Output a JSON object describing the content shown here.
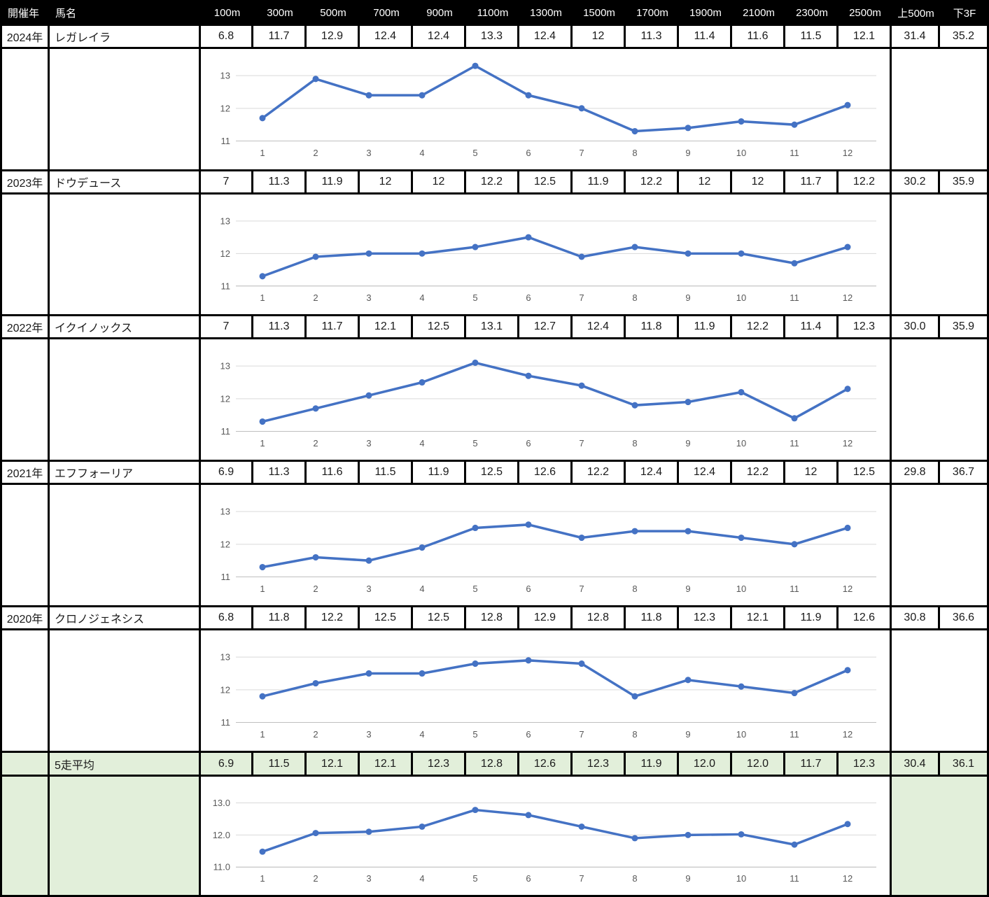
{
  "colors": {
    "accent_line": "#4472C4",
    "grid": "#D9D9D9",
    "axis": "#BFBFBF",
    "axis_text": "#595959",
    "header_bg": "#000000",
    "header_text": "#FFFFFF",
    "highlight_bg": "#E2EFDA",
    "border": "#000000"
  },
  "table": {
    "headers": [
      "開催年",
      "馬名",
      "100m",
      "300m",
      "500m",
      "700m",
      "900m",
      "1100m",
      "1300m",
      "1500m",
      "1700m",
      "1900m",
      "2100m",
      "2300m",
      "2500m",
      "上500m",
      "下3F"
    ],
    "rows": [
      {
        "year": "2024年",
        "horse": "レガレイラ",
        "highlight": false,
        "values": [
          "6.8",
          "11.7",
          "12.9",
          "12.4",
          "12.4",
          "13.3",
          "12.4",
          "12",
          "11.3",
          "11.4",
          "11.6",
          "11.5",
          "12.1",
          "31.4",
          "35.2"
        ]
      },
      {
        "year": "2023年",
        "horse": "ドウデュース",
        "highlight": false,
        "values": [
          "7",
          "11.3",
          "11.9",
          "12",
          "12",
          "12.2",
          "12.5",
          "11.9",
          "12.2",
          "12",
          "12",
          "11.7",
          "12.2",
          "30.2",
          "35.9"
        ]
      },
      {
        "year": "2022年",
        "horse": "イクイノックス",
        "highlight": false,
        "values": [
          "7",
          "11.3",
          "11.7",
          "12.1",
          "12.5",
          "13.1",
          "12.7",
          "12.4",
          "11.8",
          "11.9",
          "12.2",
          "11.4",
          "12.3",
          "30.0",
          "35.9"
        ]
      },
      {
        "year": "2021年",
        "horse": "エフフォーリア",
        "highlight": false,
        "values": [
          "6.9",
          "11.3",
          "11.6",
          "11.5",
          "11.9",
          "12.5",
          "12.6",
          "12.2",
          "12.4",
          "12.4",
          "12.2",
          "12",
          "12.5",
          "29.8",
          "36.7"
        ]
      },
      {
        "year": "2020年",
        "horse": "クロノジェネシス",
        "highlight": false,
        "values": [
          "6.8",
          "11.8",
          "12.2",
          "12.5",
          "12.5",
          "12.8",
          "12.9",
          "12.8",
          "11.8",
          "12.3",
          "12.1",
          "11.9",
          "12.6",
          "30.8",
          "36.6"
        ]
      },
      {
        "year": "",
        "horse": "5走平均",
        "highlight": true,
        "values": [
          "6.9",
          "11.5",
          "12.1",
          "12.1",
          "12.3",
          "12.8",
          "12.6",
          "12.3",
          "11.9",
          "12.0",
          "12.0",
          "11.7",
          "12.3",
          "30.4",
          "36.1"
        ]
      }
    ]
  },
  "chart_data": [
    {
      "type": "line",
      "name": "2024年 レガレイラ ラップ",
      "categories": [
        "1",
        "2",
        "3",
        "4",
        "5",
        "6",
        "7",
        "8",
        "9",
        "10",
        "11",
        "12"
      ],
      "values": [
        11.7,
        12.9,
        12.4,
        12.4,
        13.3,
        12.4,
        12,
        11.3,
        11.4,
        11.6,
        11.5,
        12.1
      ],
      "ylim": [
        11,
        13.6
      ],
      "yticks": [
        11,
        12,
        13
      ],
      "ytick_labels": [
        "11",
        "12",
        "13"
      ],
      "grid": true,
      "legend": "none"
    },
    {
      "type": "line",
      "name": "2023年 ドウデュース ラップ",
      "categories": [
        "1",
        "2",
        "3",
        "4",
        "5",
        "6",
        "7",
        "8",
        "9",
        "10",
        "11",
        "12"
      ],
      "values": [
        11.3,
        11.9,
        12,
        12,
        12.2,
        12.5,
        11.9,
        12.2,
        12,
        12,
        11.7,
        12.2
      ],
      "ylim": [
        11,
        13.6
      ],
      "yticks": [
        11,
        12,
        13
      ],
      "ytick_labels": [
        "11",
        "12",
        "13"
      ],
      "grid": true,
      "legend": "none"
    },
    {
      "type": "line",
      "name": "2022年 イクイノックス ラップ",
      "categories": [
        "1",
        "2",
        "3",
        "4",
        "5",
        "6",
        "7",
        "8",
        "9",
        "10",
        "11",
        "12"
      ],
      "values": [
        11.3,
        11.7,
        12.1,
        12.5,
        13.1,
        12.7,
        12.4,
        11.8,
        11.9,
        12.2,
        11.4,
        12.3
      ],
      "ylim": [
        11,
        13.6
      ],
      "yticks": [
        11,
        12,
        13
      ],
      "ytick_labels": [
        "11",
        "12",
        "13"
      ],
      "grid": true,
      "legend": "none"
    },
    {
      "type": "line",
      "name": "2021年 エフフォーリア ラップ",
      "categories": [
        "1",
        "2",
        "3",
        "4",
        "5",
        "6",
        "7",
        "8",
        "9",
        "10",
        "11",
        "12"
      ],
      "values": [
        11.3,
        11.6,
        11.5,
        11.9,
        12.5,
        12.6,
        12.2,
        12.4,
        12.4,
        12.2,
        12,
        12.5
      ],
      "ylim": [
        11,
        13.6
      ],
      "yticks": [
        11,
        12,
        13
      ],
      "ytick_labels": [
        "11",
        "12",
        "13"
      ],
      "grid": true,
      "legend": "none"
    },
    {
      "type": "line",
      "name": "2020年 クロノジェネシス ラップ",
      "categories": [
        "1",
        "2",
        "3",
        "4",
        "5",
        "6",
        "7",
        "8",
        "9",
        "10",
        "11",
        "12"
      ],
      "values": [
        11.8,
        12.2,
        12.5,
        12.5,
        12.8,
        12.9,
        12.8,
        11.8,
        12.3,
        12.1,
        11.9,
        12.6
      ],
      "ylim": [
        11,
        13.6
      ],
      "yticks": [
        11,
        12,
        13
      ],
      "ytick_labels": [
        "11",
        "12",
        "13"
      ],
      "grid": true,
      "legend": "none"
    },
    {
      "type": "line",
      "name": "5走平均 ラップ",
      "categories": [
        "1",
        "2",
        "3",
        "4",
        "5",
        "6",
        "7",
        "8",
        "9",
        "10",
        "11",
        "12"
      ],
      "values": [
        11.48,
        12.06,
        12.1,
        12.26,
        12.78,
        12.62,
        12.26,
        11.9,
        12.0,
        12.02,
        11.7,
        12.34
      ],
      "ylim": [
        11,
        13.6
      ],
      "yticks": [
        11,
        12,
        13
      ],
      "ytick_labels": [
        "11.0",
        "12.0",
        "13.0"
      ],
      "grid": true,
      "legend": "none"
    }
  ]
}
